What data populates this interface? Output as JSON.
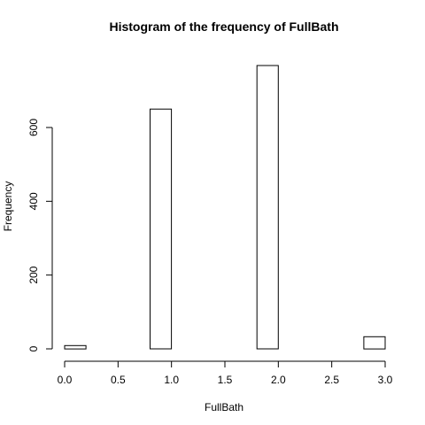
{
  "chart_data": {
    "type": "bar",
    "title": "Histogram of the frequency of FullBath",
    "xlabel": "FullBath",
    "ylabel": "Frequency",
    "bins": [
      {
        "from": 0.0,
        "to": 0.2,
        "count": 9
      },
      {
        "from": 0.2,
        "to": 0.4,
        "count": 0
      },
      {
        "from": 0.4,
        "to": 0.6,
        "count": 0
      },
      {
        "from": 0.6,
        "to": 0.8,
        "count": 0
      },
      {
        "from": 0.8,
        "to": 1.0,
        "count": 650
      },
      {
        "from": 1.0,
        "to": 1.2,
        "count": 0
      },
      {
        "from": 1.2,
        "to": 1.4,
        "count": 0
      },
      {
        "from": 1.4,
        "to": 1.6,
        "count": 0
      },
      {
        "from": 1.6,
        "to": 1.8,
        "count": 0
      },
      {
        "from": 1.8,
        "to": 2.0,
        "count": 768
      },
      {
        "from": 2.0,
        "to": 2.2,
        "count": 0
      },
      {
        "from": 2.2,
        "to": 2.4,
        "count": 0
      },
      {
        "from": 2.4,
        "to": 2.6,
        "count": 0
      },
      {
        "from": 2.6,
        "to": 2.8,
        "count": 0
      },
      {
        "from": 2.8,
        "to": 3.0,
        "count": 33
      }
    ],
    "x_ticks": [
      "0.0",
      "0.5",
      "1.0",
      "1.5",
      "2.0",
      "2.5",
      "3.0"
    ],
    "y_ticks": [
      "0",
      "200",
      "400",
      "600"
    ],
    "xlim": [
      0,
      3
    ],
    "ylim": [
      0,
      780
    ],
    "grid": false,
    "bar_fill": "#ffffff",
    "bar_stroke": "#000000"
  }
}
